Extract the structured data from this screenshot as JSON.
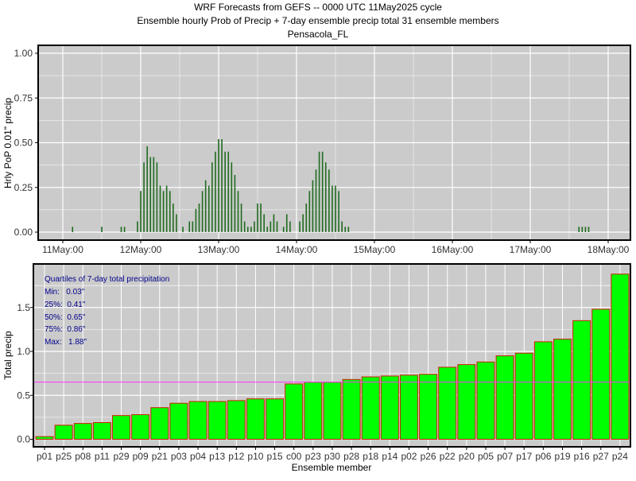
{
  "title": {
    "line1": "WRF Forecasts from GEFS --  0000 UTC 11May2025  cycle",
    "line2": "Ensemble hourly Prob of Precip + 7-day ensemble precip total  31 ensemble members",
    "line3": "Pensacola_FL"
  },
  "colors": {
    "panel_bg": "#cbcbcb",
    "grid": "#ffffff",
    "pop_bar": "#1f6b1f",
    "total_fill": "#00ff00",
    "total_edge": "#cc2200",
    "median_line": "#ff33ff",
    "quartile_text": "#00008b"
  },
  "chart_data": [
    {
      "type": "bar",
      "name": "hourly-pop",
      "ylabel": "Hrly PoP 0.01\" precip",
      "xlabel": "",
      "ylim": [
        0,
        1.0
      ],
      "yticks": [
        "0.00",
        "0.25",
        "0.50",
        "0.75",
        "1.00"
      ],
      "xticks": [
        "11May:00",
        "12May:00",
        "13May:00",
        "14May:00",
        "15May:00",
        "16May:00",
        "17May:00",
        "18May:00"
      ],
      "x_unit": "hours since 11May:00",
      "points": [
        [
          3,
          0.03
        ],
        [
          12,
          0.03
        ],
        [
          18,
          0.03
        ],
        [
          19,
          0.03
        ],
        [
          23,
          0.06
        ],
        [
          24,
          0.23
        ],
        [
          25,
          0.39
        ],
        [
          26,
          0.48
        ],
        [
          27,
          0.42
        ],
        [
          28,
          0.42
        ],
        [
          29,
          0.39
        ],
        [
          30,
          0.26
        ],
        [
          31,
          0.23
        ],
        [
          32,
          0.26
        ],
        [
          33,
          0.23
        ],
        [
          34,
          0.16
        ],
        [
          35,
          0.1
        ],
        [
          37,
          0.03
        ],
        [
          39,
          0.06
        ],
        [
          40,
          0.06
        ],
        [
          41,
          0.13
        ],
        [
          42,
          0.16
        ],
        [
          43,
          0.23
        ],
        [
          44,
          0.29
        ],
        [
          45,
          0.26
        ],
        [
          46,
          0.39
        ],
        [
          47,
          0.45
        ],
        [
          48,
          0.52
        ],
        [
          49,
          0.52
        ],
        [
          50,
          0.45
        ],
        [
          51,
          0.45
        ],
        [
          52,
          0.39
        ],
        [
          53,
          0.32
        ],
        [
          54,
          0.23
        ],
        [
          55,
          0.16
        ],
        [
          56,
          0.06
        ],
        [
          57,
          0.03
        ],
        [
          58,
          0.03
        ],
        [
          59,
          0.06
        ],
        [
          60,
          0.16
        ],
        [
          61,
          0.16
        ],
        [
          62,
          0.1
        ],
        [
          63,
          0.03
        ],
        [
          64,
          0.06
        ],
        [
          65,
          0.1
        ],
        [
          66,
          0.06
        ],
        [
          68,
          0.03
        ],
        [
          69,
          0.1
        ],
        [
          70,
          0.06
        ],
        [
          73,
          0.06
        ],
        [
          74,
          0.1
        ],
        [
          75,
          0.16
        ],
        [
          76,
          0.23
        ],
        [
          77,
          0.29
        ],
        [
          78,
          0.35
        ],
        [
          79,
          0.45
        ],
        [
          80,
          0.45
        ],
        [
          81,
          0.39
        ],
        [
          82,
          0.35
        ],
        [
          83,
          0.26
        ],
        [
          84,
          0.26
        ],
        [
          85,
          0.23
        ],
        [
          86,
          0.06
        ],
        [
          87,
          0.03
        ],
        [
          88,
          0.03
        ],
        [
          159,
          0.03
        ],
        [
          160,
          0.03
        ],
        [
          161,
          0.03
        ],
        [
          162,
          0.03
        ]
      ]
    },
    {
      "type": "bar",
      "name": "7-day-total",
      "ylabel": "Total precip",
      "xlabel": "Ensemble member",
      "ylim": [
        -0.05,
        1.9
      ],
      "yticks": [
        "0.0",
        "0.5",
        "1.0",
        "1.5"
      ],
      "categories": [
        "p01",
        "p25",
        "p08",
        "p11",
        "p29",
        "p09",
        "p21",
        "p03",
        "p04",
        "p13",
        "p12",
        "p10",
        "p15",
        "c00",
        "p23",
        "p30",
        "p28",
        "p18",
        "p14",
        "p02",
        "p26",
        "p22",
        "p20",
        "p05",
        "p07",
        "p17",
        "p06",
        "p19",
        "p16",
        "p27",
        "p24"
      ],
      "values": [
        0.03,
        0.16,
        0.18,
        0.19,
        0.27,
        0.28,
        0.36,
        0.41,
        0.43,
        0.43,
        0.44,
        0.46,
        0.46,
        0.63,
        0.65,
        0.65,
        0.68,
        0.71,
        0.72,
        0.73,
        0.74,
        0.82,
        0.85,
        0.88,
        0.95,
        0.98,
        1.11,
        1.14,
        1.35,
        1.48,
        1.88
      ],
      "reference_line": 0.65,
      "quartiles": {
        "heading": "Quartiles of 7-day total precipitation",
        "lines": [
          "Min:   0.03\"",
          "25%:  0.41\"",
          "50%:  0.65\"",
          "75%:  0.86\"",
          "Max:   1.88\""
        ]
      }
    }
  ]
}
